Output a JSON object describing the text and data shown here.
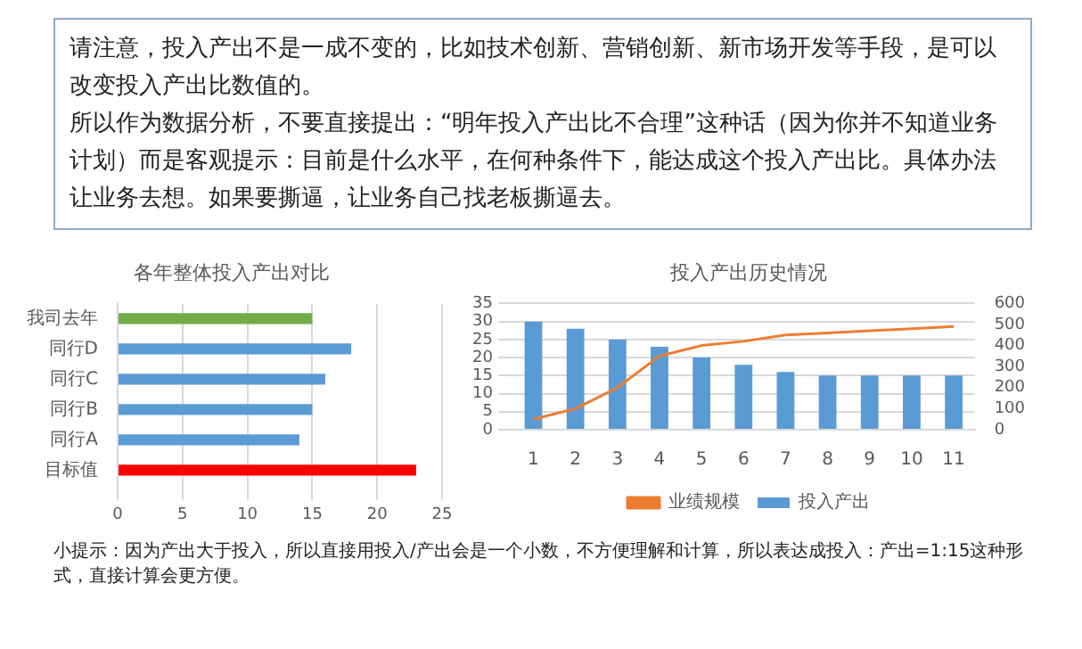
{
  "chart_data": [
    {
      "type": "other",
      "annotations": [
        "请注意，投入产出不是一成不变的，比如技术创新、营销创新、新市场开发等手段，是可以改变投入产出比数值的。",
        "所以作为数据分析，不要直接提出：“明年投入产出比不合理”这种话（因为你并不知道业务计划）而是客观提示：目前是什么水平，在何种条件下，能达成这个投入产出比。具体办法让业务去想。如果要撕逼，让业务自己找老板撕逼去。"
      ]
    },
    {
      "type": "bar",
      "orientation": "horizontal",
      "title": "各年整体投入产出对比",
      "categories": [
        "我司去年",
        "同行D",
        "同行C",
        "同行B",
        "同行A",
        "目标值"
      ],
      "values": [
        15,
        18,
        16,
        15,
        14,
        23
      ],
      "colors": [
        "#70ad47",
        "#5b9bd5",
        "#5b9bd5",
        "#5b9bd5",
        "#5b9bd5",
        "#ff0000"
      ],
      "xlim": [
        0,
        25
      ],
      "xticks": [
        0,
        5,
        10,
        15,
        20,
        25
      ],
      "grid": "x"
    },
    {
      "type": "bar",
      "title": "投入产出历史情况",
      "categories": [
        "1",
        "2",
        "3",
        "4",
        "5",
        "6",
        "7",
        "8",
        "9",
        "10",
        "11"
      ],
      "series": [
        {
          "name": "投入产出",
          "type": "bar",
          "color": "#5b9bd5",
          "values": [
            30,
            28,
            25,
            23,
            20,
            18,
            16,
            15,
            15,
            15,
            15
          ]
        },
        {
          "name": "业绩规模",
          "type": "line",
          "axis": "y2",
          "color": "#ed7d31",
          "values": [
            50,
            100,
            200,
            350,
            400,
            420,
            450,
            460,
            470,
            480,
            490
          ]
        }
      ],
      "ylim": [
        0,
        35
      ],
      "yticks": [
        0,
        5,
        10,
        15,
        20,
        25,
        30,
        35
      ],
      "y2lim": [
        0,
        600
      ],
      "y2ticks": [
        0,
        100,
        200,
        300,
        400,
        500,
        600
      ],
      "grid": "y",
      "legend": "bottom"
    },
    {
      "type": "other",
      "annotations": [
        "小提示：因为产出大于投入，所以直接用投入/产出会是一个小数，不方便理解和计算，所以表达成投入：产出=1:15这种形式，直接计算会更方便。"
      ]
    }
  ]
}
